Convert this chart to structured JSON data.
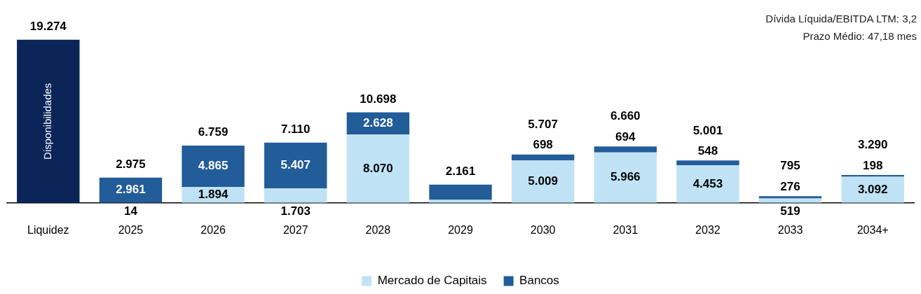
{
  "chart_data": {
    "type": "bar",
    "stacked": true,
    "legend": "bottom",
    "grid": false,
    "categories": [
      "Liquidez",
      "2025",
      "2026",
      "2027",
      "2028",
      "2029",
      "2030",
      "2031",
      "2032",
      "2033",
      "2034+"
    ],
    "series": [
      {
        "name": "Disponibilidades",
        "color": "#0b2559",
        "values": [
          19274,
          null,
          null,
          null,
          null,
          null,
          null,
          null,
          null,
          null,
          null
        ],
        "value_labels": [
          null,
          null,
          null,
          null,
          null,
          null,
          null,
          null,
          null,
          null,
          null
        ]
      },
      {
        "name": "Mercado de Capitais",
        "color": "#bfe3f5",
        "values": [
          null,
          14,
          1894,
          1703,
          8070,
          360,
          5009,
          5966,
          4453,
          519,
          3092
        ],
        "value_labels": [
          null,
          "14",
          "1.894",
          "1.703",
          "8.070",
          null,
          "5.009",
          "5.966",
          "4.453",
          "519",
          "3.092"
        ]
      },
      {
        "name": "Bancos",
        "color": "#225c99",
        "values": [
          null,
          2961,
          4865,
          5407,
          2628,
          1801,
          698,
          694,
          548,
          276,
          198
        ],
        "value_labels": [
          null,
          "2.961",
          "4.865",
          "5.407",
          "2.628",
          null,
          "698",
          "694",
          "548",
          "276",
          "198"
        ]
      }
    ],
    "totals": [
      "19.274",
      "2.975",
      "6.759",
      "7.110",
      "10.698",
      "2.161",
      "5.707",
      "6.660",
      "5.001",
      "795",
      "3.290"
    ],
    "annotations": [
      "Dívida Líquida/EBITDA LTM: 3,2",
      "Prazo Médio: 47,18 mes"
    ]
  }
}
